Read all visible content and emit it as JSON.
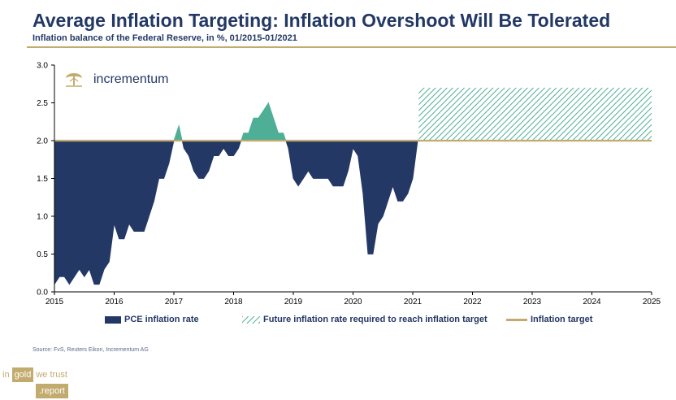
{
  "header": {
    "title": "Average Inflation Targeting: Inflation Overshoot Will Be Tolerated",
    "subtitle": "Inflation balance of the Federal Reserve, in %, 01/2015-01/2021"
  },
  "brand": {
    "name": "incrementum"
  },
  "footer": {
    "source": "Source: FvS, Reuters Eikon, Incrementum AG",
    "badge_words": [
      "in",
      "gold",
      "we trust"
    ],
    "badge_suffix": ".report"
  },
  "colors": {
    "navy": "#233865",
    "green": "#4fae96",
    "gold": "#c2ab6e",
    "hatch": "#4fae96",
    "grid": "#333333"
  },
  "chart_data": {
    "type": "area",
    "title": "Average Inflation Targeting: Inflation Overshoot Will Be Tolerated",
    "subtitle": "Inflation balance of the Federal Reserve, in %, 01/2015-01/2021",
    "xlim": [
      2015,
      2025
    ],
    "ylim": [
      0,
      3.0
    ],
    "x_ticks": [
      "2015",
      "2016",
      "2017",
      "2018",
      "2019",
      "2020",
      "2021",
      "2022",
      "2023",
      "2024",
      "2025"
    ],
    "y_ticks": [
      "0.0",
      "0.5",
      "1.0",
      "1.5",
      "2.0",
      "2.5",
      "3.0"
    ],
    "target": 2.0,
    "legend": {
      "pce": "PCE inflation rate",
      "future": "Future inflation rate required to reach inflation target",
      "target": "Inflation target"
    },
    "pce": {
      "start": "2015-01",
      "frequency": "monthly",
      "values": [
        0.1,
        0.2,
        0.2,
        0.1,
        0.2,
        0.3,
        0.2,
        0.3,
        0.1,
        0.1,
        0.3,
        0.4,
        0.9,
        0.7,
        0.7,
        0.9,
        0.8,
        0.8,
        0.8,
        1.0,
        1.2,
        1.5,
        1.5,
        1.7,
        2.0,
        2.2,
        1.9,
        1.8,
        1.6,
        1.5,
        1.5,
        1.6,
        1.8,
        1.8,
        1.9,
        1.8,
        1.8,
        1.9,
        2.1,
        2.1,
        2.3,
        2.3,
        2.4,
        2.5,
        2.3,
        2.1,
        2.1,
        1.9,
        1.5,
        1.4,
        1.5,
        1.6,
        1.5,
        1.5,
        1.5,
        1.5,
        1.4,
        1.4,
        1.4,
        1.6,
        1.9,
        1.8,
        1.3,
        0.5,
        0.5,
        0.9,
        1.0,
        1.2,
        1.4,
        1.2,
        1.2,
        1.3,
        1.5,
        2.0
      ]
    },
    "future_required": {
      "from": 2021.1,
      "to": 2025,
      "value": 2.7
    }
  }
}
